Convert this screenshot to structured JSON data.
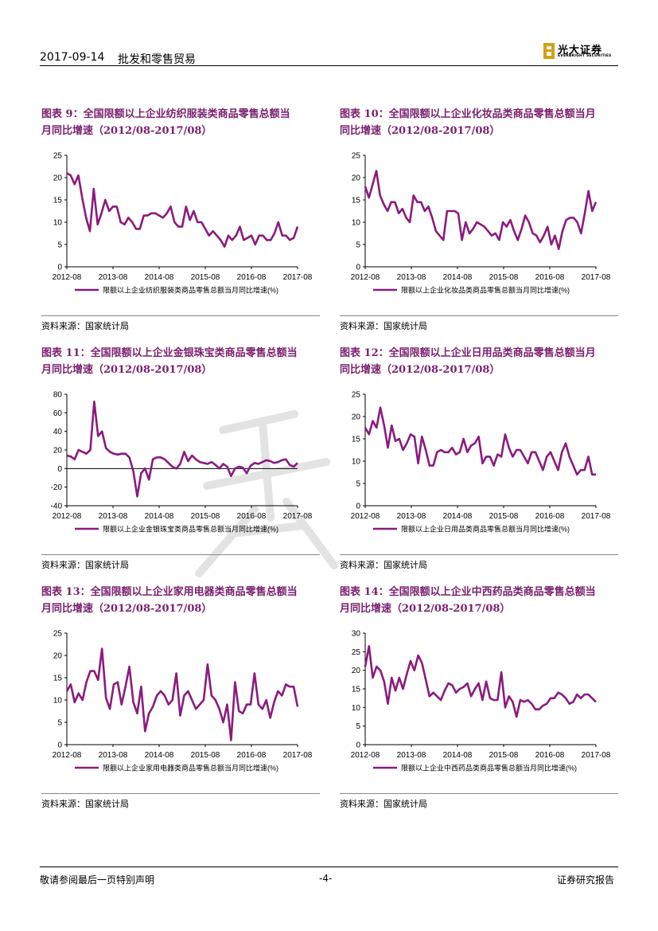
{
  "header": {
    "date": "2017-09-14",
    "title": "批发和零售贸易"
  },
  "logo": {
    "cn": "光大证券",
    "en": "EVERBRIGHT SECURITIES"
  },
  "colors": {
    "series": "#8b1a7e",
    "title": "#7a1f6e"
  },
  "source_text": "资料来源：国家统计局",
  "footer": {
    "left": "敬请参阅最后一页特别声明",
    "center": "-4-",
    "right": "证券研究报告"
  },
  "charts": [
    {
      "title_line1": "图表 9：全国限额以上企业纺织服装类商品零售总额当",
      "title_line2": "月同比增速（2012/08-2017/08）",
      "chart_data": {
        "type": "line",
        "title": "全国限额以上企业纺织服装类商品零售总额当月同比增速（2012/08-2017/08）",
        "xlabel": "",
        "ylabel": "",
        "ylim": [
          0,
          25
        ],
        "yticks": [
          "0",
          "5",
          "10",
          "15",
          "20",
          "25"
        ],
        "xticks": [
          "2012-08",
          "2013-08",
          "2014-08",
          "2015-08",
          "2016-08",
          "2017-08"
        ],
        "series": [
          {
            "name": "限额以上企业纺织服装类商品零售总额当月同比增速(%)",
            "values": [
              21,
              20.5,
              18.5,
              20.5,
              15.5,
              11,
              8,
              17.5,
              9.5,
              12,
              15,
              12.5,
              13.5,
              13.5,
              10,
              9.5,
              11,
              10,
              8.5,
              8.5,
              11.5,
              11.5,
              12,
              12,
              11.5,
              11,
              12,
              13.5,
              10,
              9,
              9,
              13.5,
              10.5,
              12.5,
              10,
              10,
              8.5,
              7,
              8,
              7,
              6,
              4.5,
              7,
              6,
              7,
              9,
              6,
              6.5,
              7,
              5,
              7,
              7,
              6,
              6,
              7.5,
              10,
              7,
              7,
              6,
              6.5,
              9
            ]
          }
        ]
      }
    },
    {
      "title_line1": "图表 10：全国限额以上企业化妆品类商品零售总额当月",
      "title_line2": "同比增速（2012/08-2017/08）",
      "chart_data": {
        "type": "line",
        "title": "全国限额以上企业化妆品类商品零售总额当月同比增速（2012/08-2017/08）",
        "xlabel": "",
        "ylabel": "",
        "ylim": [
          0,
          25
        ],
        "yticks": [
          "0",
          "5",
          "10",
          "15",
          "20",
          "25"
        ],
        "xticks": [
          "2012-08",
          "2013-08",
          "2014-08",
          "2015-08",
          "2016-08",
          "2017-08"
        ],
        "series": [
          {
            "name": "限额以上企业化妆品类商品零售总额当月同比增速(%)",
            "values": [
              18,
              15.5,
              18.5,
              21.5,
              16,
              14,
              12.5,
              14.5,
              14.5,
              12,
              13,
              11,
              10,
              16,
              14.5,
              14.5,
              12.5,
              13.5,
              11,
              8,
              7,
              6,
              12.5,
              12.5,
              12.5,
              12,
              6,
              10,
              7.5,
              8.5,
              10,
              9.5,
              9,
              8,
              7,
              7.5,
              6,
              10,
              9,
              10.5,
              8,
              6,
              8.5,
              11.5,
              10,
              7.5,
              7,
              5.5,
              7,
              9,
              5,
              7,
              4,
              8,
              10.5,
              11,
              11,
              10,
              7.5,
              12,
              17,
              12.5,
              14.5
            ]
          }
        ]
      }
    },
    {
      "title_line1": "图表 11：全国限额以上企业金银珠宝类商品零售总额当",
      "title_line2": "月同比增速（2012/08-2017/08）",
      "chart_data": {
        "type": "line",
        "title": "全国限额以上企业金银珠宝类商品零售总额当月同比增速（2012/08-2017/08）",
        "xlabel": "",
        "ylabel": "",
        "ylim": [
          -40,
          80
        ],
        "yticks": [
          "-40",
          "-20",
          "0",
          "20",
          "40",
          "60",
          "80"
        ],
        "xticks": [
          "2012-08",
          "2013-08",
          "2014-08",
          "2015-08",
          "2016-08",
          "2017-08"
        ],
        "series": [
          {
            "name": "限额以上企业金银珠宝类商品零售总额当月同比增速(%)",
            "values": [
              14,
              13,
              10,
              20,
              18,
              16,
              20,
              72,
              35,
              40,
              22,
              18,
              16,
              15,
              16,
              16,
              12,
              -3,
              -30,
              -5,
              0,
              -12,
              10,
              12,
              12,
              10,
              6,
              2,
              0,
              5,
              18,
              8,
              14,
              10,
              7,
              6,
              5,
              7,
              4,
              0,
              5,
              2,
              -8,
              0,
              2,
              1,
              -5,
              3,
              6,
              5,
              7,
              9,
              8,
              6,
              7,
              9,
              10,
              4,
              2,
              6
            ]
          }
        ]
      }
    },
    {
      "title_line1": "图表 12：全国限额以上企业日用品类商品零售总额当月",
      "title_line2": "同比增速（2012/08-2017/08）",
      "chart_data": {
        "type": "line",
        "title": "全国限额以上企业日用品类商品零售总额当月同比增速（2012/08-2017/08）",
        "xlabel": "",
        "ylabel": "",
        "ylim": [
          0,
          25
        ],
        "yticks": [
          "0",
          "5",
          "10",
          "15",
          "20",
          "25"
        ],
        "xticks": [
          "2012-08",
          "2013-08",
          "2014-08",
          "2015-08",
          "2016-08",
          "2017-08"
        ],
        "series": [
          {
            "name": "限额以上企业日用品类商品零售总额当月同比增速(%)",
            "values": [
              17.5,
              16,
              19,
              17.5,
              22,
              18,
              13,
              18,
              14.5,
              15,
              12.5,
              14,
              16,
              15.5,
              9.5,
              15.5,
              12.5,
              9,
              9,
              12,
              12.5,
              12,
              12,
              13,
              11.5,
              12,
              15,
              12,
              13.5,
              14,
              15.5,
              9.5,
              11,
              11,
              9,
              11.5,
              11,
              16,
              13,
              11,
              12.5,
              12.5,
              11,
              9.5,
              12,
              12,
              10,
              8,
              11,
              12,
              10,
              8,
              12,
              14,
              11,
              9,
              7,
              8,
              8,
              11,
              7,
              7
            ]
          }
        ]
      }
    },
    {
      "title_line1": "图表 13：全国限额以上企业家用电器类商品零售总额当",
      "title_line2": "月同比增速（2012/08-2017/08）",
      "chart_data": {
        "type": "line",
        "title": "全国限额以上企业家用电器类商品零售总额当月同比增速（2012/08-2017/08）",
        "xlabel": "",
        "ylabel": "",
        "ylim": [
          0,
          25
        ],
        "yticks": [
          "0",
          "5",
          "10",
          "15",
          "20",
          "25"
        ],
        "xticks": [
          "2012-08",
          "2013-08",
          "2014-08",
          "2015-08",
          "2016-08",
          "2017-08"
        ],
        "series": [
          {
            "name": "限额以上企业家用电器类商品零售总额当月同比增速(%)",
            "values": [
              12,
              13.5,
              9.5,
              11.5,
              10,
              14,
              16.5,
              16.5,
              14.5,
              21.5,
              10.5,
              8,
              13.5,
              14,
              9,
              13,
              17.5,
              9.5,
              7,
              13,
              3,
              7,
              8.5,
              11,
              12,
              11,
              9,
              10,
              16,
              6.5,
              11,
              12,
              10,
              8,
              9,
              10,
              18,
              11,
              10,
              8,
              5,
              9,
              1,
              14,
              7.5,
              7,
              9,
              9,
              16,
              9,
              8,
              10,
              6,
              9.5,
              12,
              11,
              13.5,
              13,
              13,
              8.5
            ]
          }
        ]
      }
    },
    {
      "title_line1": "图表 14：全国限额以上企业中西药品类商品零售总额当",
      "title_line2": "月同比增速（2012/08-2017/08）",
      "chart_data": {
        "type": "line",
        "title": "全国限额以上企业中西药品类商品零售总额当月同比增速（2012/08-2017/08）",
        "xlabel": "",
        "ylabel": "",
        "ylim": [
          0,
          30
        ],
        "yticks": [
          "0",
          "5",
          "10",
          "15",
          "20",
          "25",
          "30"
        ],
        "xticks": [
          "2012-08",
          "2013-08",
          "2014-08",
          "2015-08",
          "2016-08",
          "2017-08"
        ],
        "series": [
          {
            "name": "限额以上企业中西药品类商品零售总额当月同比增速(%)",
            "values": [
              21,
              26.5,
              18,
              21,
              20,
              17,
              11,
              18,
              14.5,
              18,
              15,
              19,
              22.5,
              20,
              24,
              22,
              17.5,
              13,
              14,
              13,
              12,
              14.5,
              16.5,
              16,
              14,
              15,
              15.5,
              16.5,
              13,
              15,
              16.5,
              12,
              17,
              12.5,
              12,
              12,
              19.5,
              10,
              13,
              11.5,
              7.5,
              12,
              11.5,
              12,
              11,
              9.5,
              9.5,
              10.5,
              11,
              12.5,
              12.5,
              14,
              13.5,
              12.5,
              11,
              11.5,
              13.5,
              12.5,
              13.5,
              13.5,
              12.5,
              11.5
            ]
          }
        ]
      }
    }
  ]
}
